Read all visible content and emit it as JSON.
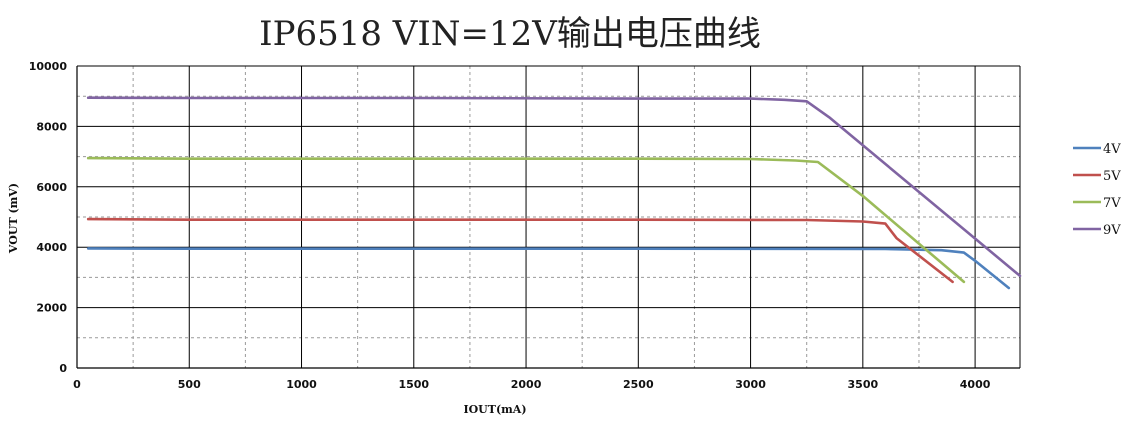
{
  "chart_data": {
    "type": "line",
    "title": "IP6518 VIN=12V输出电压曲线",
    "xlabel": "IOUT(mA)",
    "ylabel": "VOUT (mV)",
    "xlim": [
      0,
      4200
    ],
    "ylim": [
      0,
      10000
    ],
    "x_ticks": [
      0,
      500,
      1000,
      1500,
      2000,
      2500,
      3000,
      3500,
      4000
    ],
    "y_ticks": [
      0,
      2000,
      4000,
      6000,
      8000,
      10000
    ],
    "grid": "major solid, minor dashed",
    "legend_position": "right",
    "series": [
      {
        "name": "4V",
        "color": "#4F81BD",
        "points": [
          [
            50,
            3960
          ],
          [
            500,
            3950
          ],
          [
            1500,
            3950
          ],
          [
            2500,
            3950
          ],
          [
            3600,
            3940
          ],
          [
            3850,
            3900
          ],
          [
            3950,
            3820
          ],
          [
            4000,
            3550
          ],
          [
            4150,
            2650
          ]
        ]
      },
      {
        "name": "5V",
        "color": "#C0504D",
        "points": [
          [
            50,
            4930
          ],
          [
            500,
            4910
          ],
          [
            1500,
            4910
          ],
          [
            2500,
            4910
          ],
          [
            3250,
            4900
          ],
          [
            3500,
            4850
          ],
          [
            3600,
            4780
          ],
          [
            3650,
            4300
          ],
          [
            3900,
            2850
          ]
        ]
      },
      {
        "name": "7V",
        "color": "#9BBB59",
        "points": [
          [
            50,
            6950
          ],
          [
            500,
            6930
          ],
          [
            1500,
            6930
          ],
          [
            2500,
            6930
          ],
          [
            3000,
            6920
          ],
          [
            3200,
            6870
          ],
          [
            3300,
            6820
          ],
          [
            3500,
            5700
          ],
          [
            3950,
            2850
          ]
        ]
      },
      {
        "name": "9V",
        "color": "#8064A2",
        "points": [
          [
            50,
            8950
          ],
          [
            500,
            8940
          ],
          [
            1500,
            8940
          ],
          [
            2500,
            8920
          ],
          [
            3000,
            8920
          ],
          [
            3150,
            8880
          ],
          [
            3250,
            8830
          ],
          [
            3350,
            8300
          ],
          [
            4200,
            3050
          ]
        ]
      }
    ]
  }
}
